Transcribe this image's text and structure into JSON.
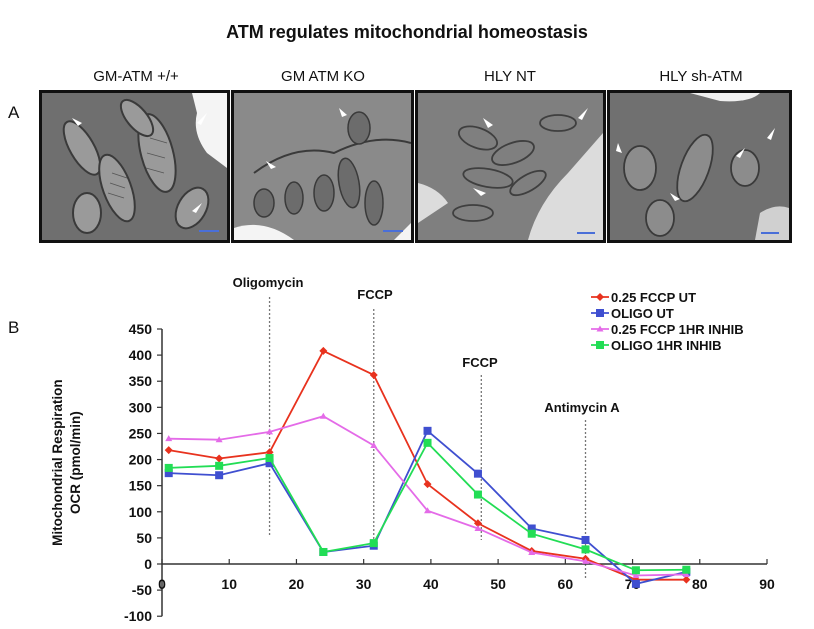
{
  "figure": {
    "title": "ATM regulates mitochondrial homeostasis",
    "panel_a_letter": "A",
    "panel_b_letter": "B",
    "panel_a": {
      "images": [
        {
          "label": "GM-ATM +/+",
          "arrows": 3
        },
        {
          "label": "GM ATM KO",
          "arrows": 2
        },
        {
          "label": "HLY NT",
          "arrows": 3
        },
        {
          "label": "HLY sh-ATM",
          "arrows": 4
        }
      ]
    }
  },
  "chart_data": {
    "type": "line",
    "title": "",
    "xlabel": "",
    "ylabel": "Mitochondrial Respiration OCR (pmol/min)",
    "ylabel_lines": [
      "Mitochondrial Respiration",
      "OCR (pmol/min)"
    ],
    "xlim": [
      0,
      90
    ],
    "ylim": [
      -100,
      450
    ],
    "x_ticks": [
      0,
      10,
      20,
      30,
      40,
      50,
      60,
      70,
      80,
      90
    ],
    "y_ticks": [
      -100,
      -50,
      0,
      50,
      100,
      150,
      200,
      250,
      300,
      350,
      400,
      450
    ],
    "grid": false,
    "legend_position": "top-right",
    "annotations": [
      {
        "label": "Oligomycin",
        "x": 16
      },
      {
        "label": "FCCP",
        "x": 31.5
      },
      {
        "label": "FCCP",
        "x": 47.5
      },
      {
        "label": "Antimycin A",
        "x": 63
      }
    ],
    "x": [
      1,
      8.5,
      16,
      24,
      31.5,
      39.5,
      47,
      55,
      63,
      70.5,
      78
    ],
    "series": [
      {
        "name": "0.25 FCCP UT",
        "color": "#e8321e",
        "marker": "diamond",
        "values": [
          218,
          202,
          214,
          408,
          362,
          153,
          78,
          25,
          10,
          -30,
          -30
        ]
      },
      {
        "name": "OLIGO UT",
        "color": "#3f4fd0",
        "marker": "square",
        "values": [
          174,
          170,
          193,
          23,
          35,
          255,
          173,
          68,
          46,
          -38,
          -15
        ]
      },
      {
        "name": "0.25 FCCP 1HR INHIB",
        "color": "#e46be8",
        "marker": "triangle",
        "values": [
          240,
          238,
          253,
          283,
          227,
          102,
          68,
          22,
          5,
          -22,
          -20
        ]
      },
      {
        "name": "OLIGO 1HR INHIB",
        "color": "#22dd55",
        "marker": "square",
        "values": [
          184,
          188,
          203,
          23,
          40,
          232,
          133,
          58,
          28,
          -12,
          -11
        ]
      }
    ]
  }
}
